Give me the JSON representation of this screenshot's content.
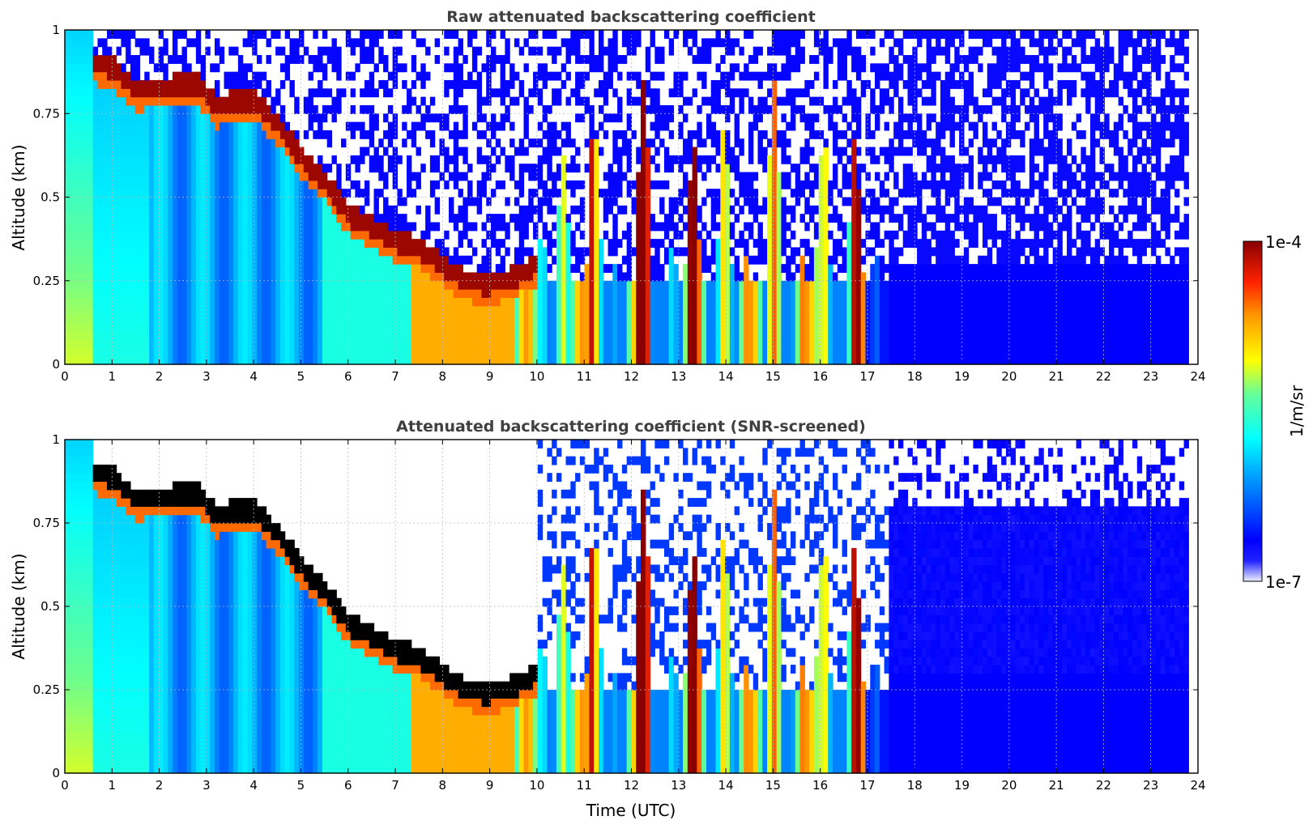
{
  "chart_data": [
    {
      "type": "heatmap",
      "title": "Raw attenuated backscattering coefficient",
      "xlabel": "",
      "ylabel": "Altitude (km)",
      "xlim": [
        0,
        24
      ],
      "ylim": [
        0,
        1
      ],
      "x_ticks": [
        "0",
        "1",
        "2",
        "3",
        "4",
        "5",
        "6",
        "7",
        "8",
        "9",
        "10",
        "11",
        "12",
        "13",
        "14",
        "15",
        "16",
        "17",
        "18",
        "19",
        "20",
        "21",
        "22",
        "23",
        "24"
      ],
      "y_ticks": [
        "0",
        "0.25",
        "0.5",
        "0.75",
        "1"
      ],
      "grid": true,
      "log_scale_color": true,
      "data_end_time": 23.8,
      "layer_top_km": [
        {
          "t": 0.6,
          "z": 0.93
        },
        {
          "t": 1.0,
          "z": 0.92
        },
        {
          "t": 1.5,
          "z": 0.85
        },
        {
          "t": 2.8,
          "z": 0.87
        },
        {
          "t": 3.2,
          "z": 0.8
        },
        {
          "t": 3.6,
          "z": 0.82
        },
        {
          "t": 4.0,
          "z": 0.82
        },
        {
          "t": 4.5,
          "z": 0.75
        },
        {
          "t": 5.0,
          "z": 0.65
        },
        {
          "t": 5.5,
          "z": 0.58
        },
        {
          "t": 6.0,
          "z": 0.48
        },
        {
          "t": 6.5,
          "z": 0.44
        },
        {
          "t": 7.0,
          "z": 0.4
        },
        {
          "t": 7.5,
          "z": 0.38
        },
        {
          "t": 8.0,
          "z": 0.33
        },
        {
          "t": 8.5,
          "z": 0.28
        },
        {
          "t": 9.0,
          "z": 0.27
        },
        {
          "t": 9.5,
          "z": 0.29
        },
        {
          "t": 10.0,
          "z": 0.33
        }
      ]
    },
    {
      "type": "heatmap",
      "title": "Attenuated backscattering coefficient (SNR-screened)",
      "xlabel": "Time (UTC)",
      "ylabel": "Altitude (km)",
      "xlim": [
        0,
        24
      ],
      "ylim": [
        0,
        1
      ],
      "x_ticks": [
        "0",
        "1",
        "2",
        "3",
        "4",
        "5",
        "6",
        "7",
        "8",
        "9",
        "10",
        "11",
        "12",
        "13",
        "14",
        "15",
        "16",
        "17",
        "18",
        "19",
        "20",
        "21",
        "22",
        "23",
        "24"
      ],
      "y_ticks": [
        "0",
        "0.25",
        "0.5",
        "0.75",
        "1"
      ],
      "grid": true,
      "log_scale_color": true,
      "data_end_time": 23.8
    }
  ],
  "colorbar": {
    "label": "1/m/sr",
    "max_label": "1e-4",
    "min_label": "1e-7",
    "colormap": "jet",
    "min_color": "#eeeeff"
  }
}
